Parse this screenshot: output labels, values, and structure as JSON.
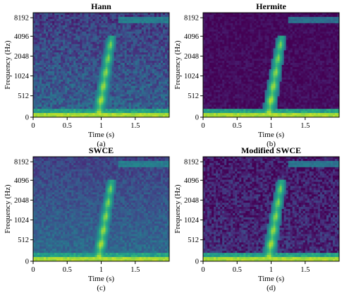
{
  "chart_data": {
    "type": "heatmap",
    "description_free": true,
    "layout": "2x2 grid of spectrograms",
    "colormap": "viridis",
    "colors": {
      "low": "#440154",
      "mid": "#21918c",
      "high": "#fde725"
    },
    "panels": [
      {
        "title": "Hann",
        "caption": "(a)",
        "xlabel": "Time (s)",
        "ylabel": "Frequency (Hz)",
        "xlim": [
          0,
          2
        ],
        "xticks": [
          "0",
          "0.5",
          "1",
          "1.5"
        ],
        "yticks": [
          "0",
          "512",
          "1024",
          "2048",
          "4096",
          "8192"
        ],
        "background_level": 0.32,
        "noise": 0.12,
        "top_band_level": 0.38
      },
      {
        "title": "Hermite",
        "caption": "(b)",
        "xlabel": "Time (s)",
        "ylabel": "Frequency (Hz)",
        "xlim": [
          0,
          2
        ],
        "xticks": [
          "0",
          "0.5",
          "1",
          "1.5"
        ],
        "yticks": [
          "0",
          "512",
          "1024",
          "2048",
          "4096",
          "8192"
        ],
        "background_level": 0.04,
        "noise": 0.05,
        "top_band_level": 0.32
      },
      {
        "title": "SWCE",
        "caption": "(c)",
        "xlabel": "Time (s)",
        "ylabel": "Frequency (Hz)",
        "xlim": [
          0,
          2
        ],
        "xticks": [
          "0",
          "0.5",
          "1",
          "1.5"
        ],
        "yticks": [
          "0",
          "512",
          "1024",
          "2048",
          "4096",
          "8192"
        ],
        "background_level": 0.36,
        "noise": 0.08,
        "top_band_level": 0.38
      },
      {
        "title": "Modified SWCE",
        "caption": "(d)",
        "xlabel": "Time (s)",
        "ylabel": "Frequency (Hz)",
        "xlim": [
          0,
          2
        ],
        "xticks": [
          "0",
          "0.5",
          "1",
          "1.5"
        ],
        "yticks": [
          "0",
          "512",
          "1024",
          "2048",
          "4096",
          "8192"
        ],
        "background_level": 0.13,
        "noise": 0.12,
        "top_band_level": 0.34
      }
    ]
  }
}
